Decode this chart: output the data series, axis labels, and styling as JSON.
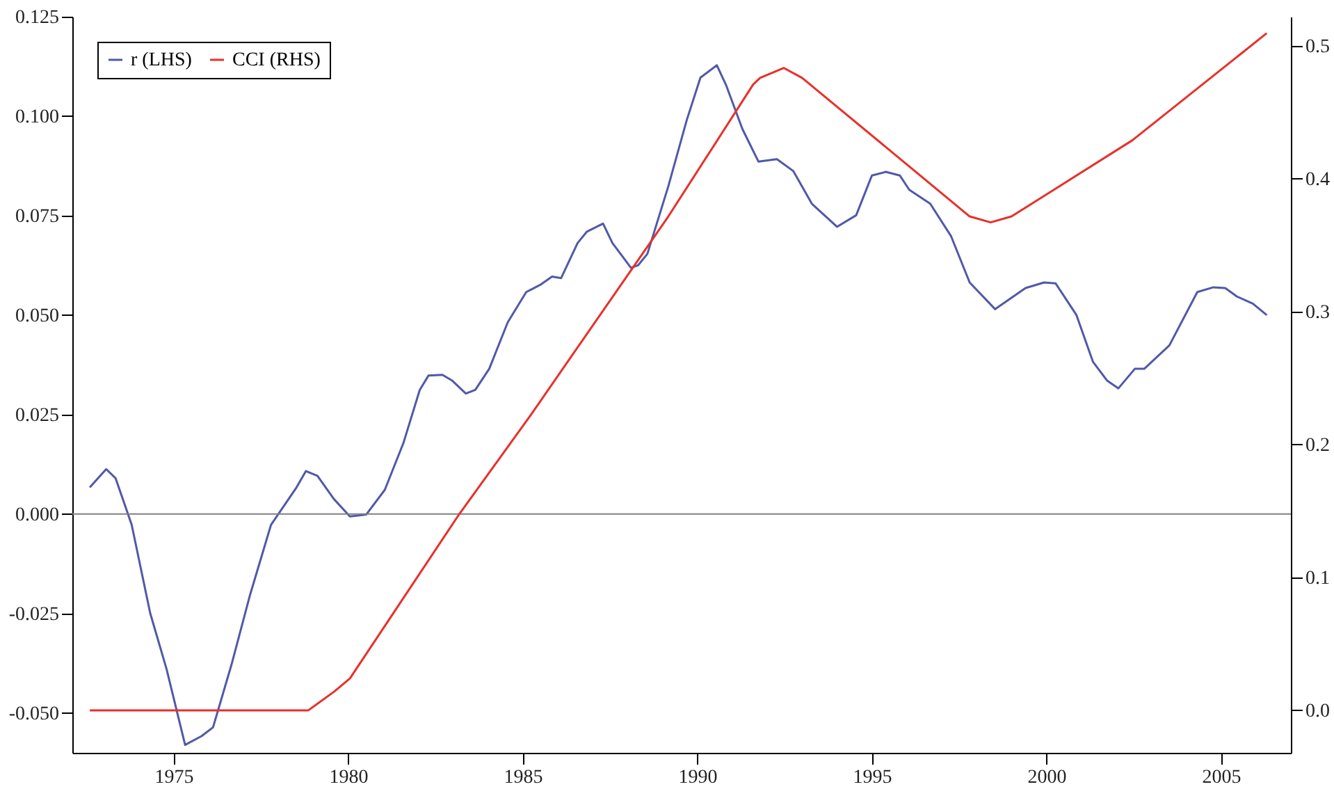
{
  "chart_data": {
    "type": "line",
    "series": [
      {
        "name": "r (LHS)",
        "color": "#5059a8",
        "axis": "y",
        "x": [
          1972.6,
          1973.07,
          1973.34,
          1973.8,
          1974.33,
          1974.8,
          1975.33,
          1975.8,
          1976.13,
          1976.66,
          1977.19,
          1977.79,
          1978.52,
          1978.79,
          1979.12,
          1979.59,
          1980.05,
          1980.52,
          1981.05,
          1981.58,
          1982.05,
          1982.3,
          1982.7,
          1982.97,
          1983.37,
          1983.64,
          1984.04,
          1984.57,
          1985.1,
          1985.5,
          1985.84,
          1986.1,
          1986.57,
          1986.84,
          1987.3,
          1987.57,
          1988.1,
          1988.3,
          1988.57,
          1989.17,
          1989.7,
          1990.09,
          1990.56,
          1990.82,
          1991.29,
          1991.75,
          1992.28,
          1992.75,
          1993.28,
          1994.0,
          1994.55,
          1995.0,
          1995.4,
          1995.8,
          1996.07,
          1996.67,
          1997.27,
          1997.8,
          1998.53,
          1999.4,
          1999.93,
          2000.26,
          2000.86,
          2001.33,
          2001.73,
          2002.06,
          2002.53,
          2002.8,
          2003.52,
          2004.32,
          2004.78,
          2005.12,
          2005.45,
          2005.91,
          2006.31
        ],
        "values": [
          0.0067,
          0.0113,
          0.009,
          -0.0027,
          -0.0249,
          -0.039,
          -0.058,
          -0.0558,
          -0.0536,
          -0.0378,
          -0.0203,
          -0.0027,
          0.0067,
          0.0108,
          0.0096,
          0.0038,
          -0.0006,
          -0.0001,
          0.0061,
          0.0178,
          0.0312,
          0.0348,
          0.035,
          0.0336,
          0.0303,
          0.0312,
          0.0365,
          0.0482,
          0.0558,
          0.0576,
          0.0597,
          0.0593,
          0.0681,
          0.071,
          0.073,
          0.0681,
          0.0619,
          0.0625,
          0.0654,
          0.0824,
          0.0991,
          0.1097,
          0.1128,
          0.1079,
          0.0968,
          0.0886,
          0.0892,
          0.0862,
          0.078,
          0.0722,
          0.0751,
          0.0851,
          0.086,
          0.0851,
          0.0815,
          0.078,
          0.0698,
          0.0582,
          0.0515,
          0.0568,
          0.0582,
          0.058,
          0.05,
          0.0383,
          0.0336,
          0.0316,
          0.0365,
          0.0365,
          0.0424,
          0.0558,
          0.057,
          0.0568,
          0.0547,
          0.0529,
          0.05
        ]
      },
      {
        "name": "CCI (RHS)",
        "color": "#e8302a",
        "axis": "y2",
        "x": [
          1972.6,
          1978.86,
          1979.59,
          1980.05,
          1983.18,
          1985.17,
          1989.17,
          1991.6,
          1991.8,
          1992.48,
          1993.0,
          1997.8,
          1998.4,
          1999.0,
          2002.46,
          2006.31
        ],
        "values": [
          0,
          0,
          0.0139,
          0.024,
          0.1476,
          0.22,
          0.3717,
          0.471,
          0.476,
          0.4834,
          0.476,
          0.3717,
          0.3672,
          0.3717,
          0.429,
          0.5096
        ]
      }
    ],
    "xlim": [
      1972.1,
      2007.0
    ],
    "xticks": [
      1975,
      1980,
      1985,
      1990,
      1995,
      2000,
      2005
    ],
    "ylim": [
      -0.06,
      0.125
    ],
    "yticks": [
      {
        "value": -0.05,
        "label": "-0.050"
      },
      {
        "value": -0.025,
        "label": "-0.025"
      },
      {
        "value": 0,
        "label": "0.000"
      },
      {
        "value": 0.025,
        "label": "0.025"
      },
      {
        "value": 0.05,
        "label": "0.050"
      },
      {
        "value": 0.075,
        "label": "0.075"
      },
      {
        "value": 0.1,
        "label": "0.100"
      },
      {
        "value": 0.125,
        "label": "0.125"
      }
    ],
    "y2lim": [
      -0.032,
      0.522
    ],
    "y2ticks": [
      {
        "value": 0,
        "label": "0.0"
      },
      {
        "value": 0.1,
        "label": "0.1"
      },
      {
        "value": 0.2,
        "label": "0.2"
      },
      {
        "value": 0.3,
        "label": "0.3"
      },
      {
        "value": 0.4,
        "label": "0.4"
      },
      {
        "value": 0.5,
        "label": "0.5"
      }
    ],
    "ref_lines": [
      {
        "axis": "y",
        "value": 0,
        "color": "#808080"
      }
    ],
    "legend": "top left",
    "grid": false,
    "line_style": "solid"
  }
}
